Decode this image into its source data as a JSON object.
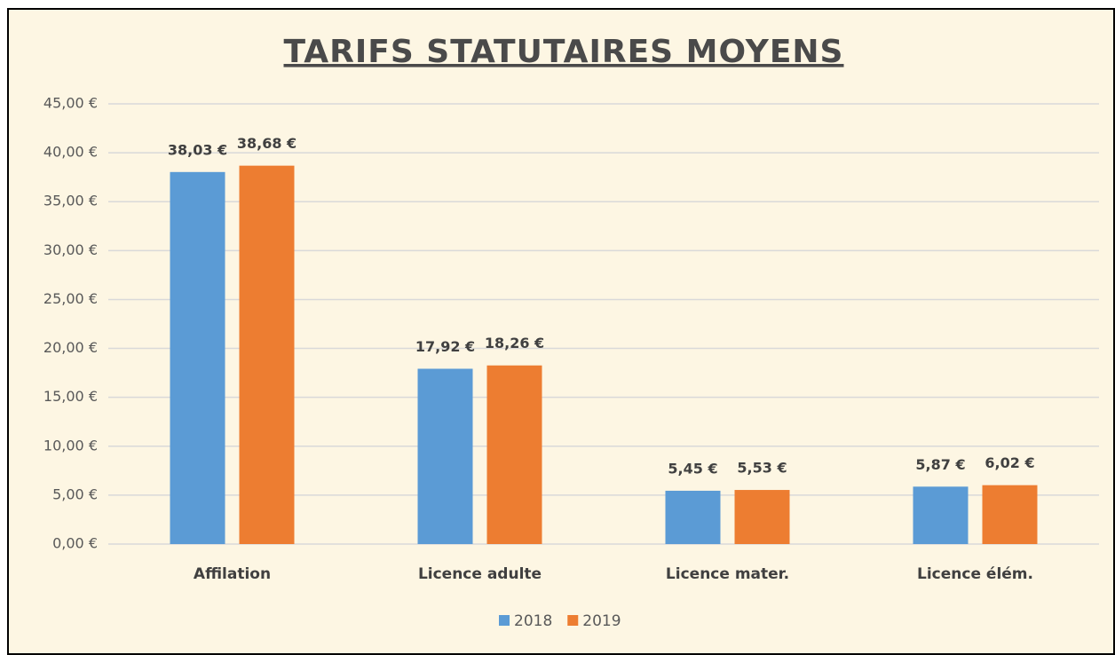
{
  "chart_data": {
    "type": "bar",
    "title": "TARIFS STATUTAIRES MOYENS",
    "categories": [
      "Affilation",
      "Licence adulte",
      "Licence mater.",
      "Licence élém."
    ],
    "series": [
      {
        "name": "2018",
        "color": "#5b9bd5",
        "values": [
          38.03,
          17.92,
          5.45,
          5.87
        ],
        "value_labels": [
          "38,03 €",
          "17,92 €",
          "5,45 €",
          "5,87 €"
        ]
      },
      {
        "name": "2019",
        "color": "#ed7d31",
        "values": [
          38.68,
          18.26,
          5.53,
          6.02
        ],
        "value_labels": [
          "38,68 €",
          "18,26 €",
          "5,53 €",
          "6,02 €"
        ]
      }
    ],
    "ylim": [
      0,
      45
    ],
    "yticks": [
      {
        "value": 0,
        "label": "0,00 €"
      },
      {
        "value": 5,
        "label": "5,00 €"
      },
      {
        "value": 10,
        "label": "10,00 €"
      },
      {
        "value": 15,
        "label": "15,00 €"
      },
      {
        "value": 20,
        "label": "20,00 €"
      },
      {
        "value": 25,
        "label": "25,00 €"
      },
      {
        "value": 30,
        "label": "30,00 €"
      },
      {
        "value": 35,
        "label": "35,00 €"
      },
      {
        "value": 40,
        "label": "40,00 €"
      },
      {
        "value": 45,
        "label": "45,00 €"
      }
    ],
    "grid": true,
    "legend": "bottom"
  }
}
